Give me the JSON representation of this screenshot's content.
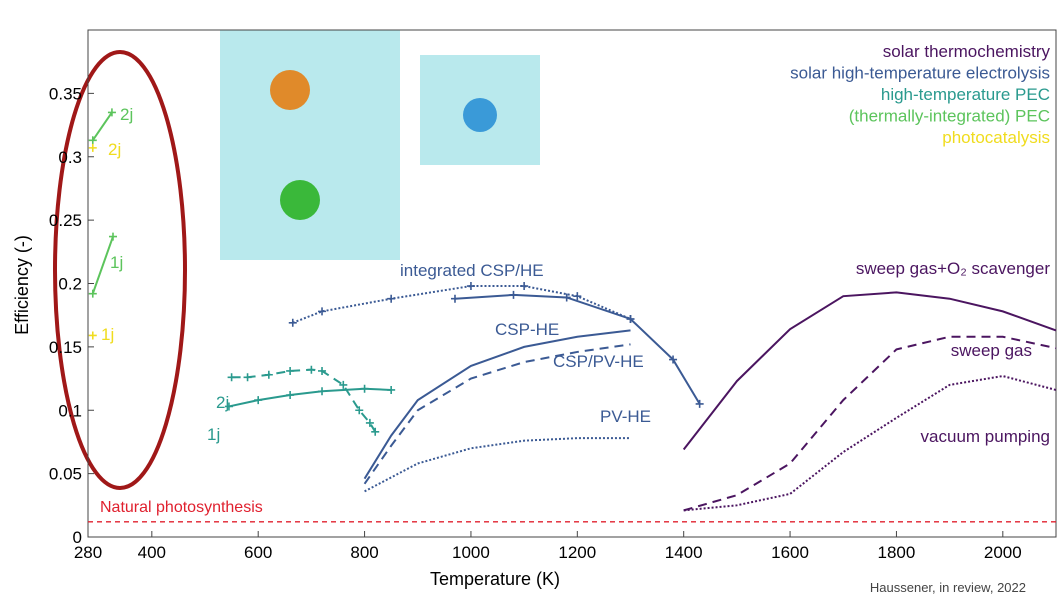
{
  "chart_data": {
    "type": "line",
    "x_label": "Temperature (K)",
    "y_label": "Efficiency (-)",
    "xlim": [
      280,
      2100
    ],
    "ylim": [
      0,
      0.4
    ],
    "xticks": [
      280,
      400,
      600,
      800,
      1000,
      1200,
      1400,
      1600,
      1800,
      2000
    ],
    "yticks": [
      0,
      0.05,
      0.1,
      0.15,
      0.2,
      0.25,
      0.3,
      0.35
    ],
    "legend": [
      {
        "name": "solar thermochemistry",
        "color": "#4b1560"
      },
      {
        "name": "solar high-temperature electrolysis",
        "color": "#3b5a94"
      },
      {
        "name": "high-temperature PEC",
        "color": "#2a9a8e"
      },
      {
        "name": "(thermally-integrated) PEC",
        "color": "#5cc45c"
      },
      {
        "name": "photocatalysis",
        "color": "#f0dc1e"
      }
    ],
    "series": [
      {
        "name": "2j",
        "color": "#5cc45c",
        "dash": "solid",
        "markers": true,
        "x": [
          289,
          325
        ],
        "values": [
          0.313,
          0.335
        ]
      },
      {
        "name": "2j",
        "color": "#f0dc1e",
        "dash": "solid",
        "markers": true,
        "x": [
          289
        ],
        "values": [
          0.307
        ]
      },
      {
        "name": "1j",
        "color": "#5cc45c",
        "dash": "solid",
        "markers": true,
        "x": [
          289,
          327
        ],
        "values": [
          0.192,
          0.237
        ]
      },
      {
        "name": "1j",
        "color": "#f0dc1e",
        "dash": "solid",
        "markers": true,
        "x": [
          289
        ],
        "values": [
          0.159
        ]
      },
      {
        "name": "2j",
        "color": "#2a9a8e",
        "dash": "dash",
        "markers": true,
        "x": [
          550,
          580,
          620,
          660,
          700,
          720,
          760,
          790,
          810,
          820
        ],
        "values": [
          0.126,
          0.126,
          0.128,
          0.131,
          0.132,
          0.131,
          0.12,
          0.1,
          0.09,
          0.083
        ]
      },
      {
        "name": "1j",
        "color": "#2a9a8e",
        "dash": "solid",
        "markers": true,
        "x": [
          545,
          600,
          660,
          720,
          800,
          850
        ],
        "values": [
          0.103,
          0.108,
          0.112,
          0.115,
          0.117,
          0.116
        ]
      },
      {
        "name": "integrated CSP/HE",
        "color": "#3b5a94",
        "dash": "dot",
        "markers": true,
        "x": [
          665,
          720,
          850,
          1000,
          1100,
          1200,
          1300
        ],
        "values": [
          0.169,
          0.178,
          0.188,
          0.198,
          0.198,
          0.19,
          0.172
        ]
      },
      {
        "color": "#3b5a94",
        "dash": "solid",
        "markers": true,
        "x": [
          970,
          1080,
          1180,
          1300,
          1380,
          1430
        ],
        "values": [
          0.188,
          0.191,
          0.189,
          0.172,
          0.14,
          0.105
        ]
      },
      {
        "name": "CSP-HE",
        "color": "#3b5a94",
        "dash": "solid",
        "markers": false,
        "x": [
          800,
          850,
          900,
          1000,
          1100,
          1200,
          1300
        ],
        "values": [
          0.046,
          0.08,
          0.108,
          0.135,
          0.15,
          0.158,
          0.163
        ]
      },
      {
        "name": "CSP/PV-HE",
        "color": "#3b5a94",
        "dash": "dash",
        "markers": false,
        "x": [
          800,
          850,
          900,
          1000,
          1100,
          1200,
          1300
        ],
        "values": [
          0.042,
          0.072,
          0.1,
          0.125,
          0.138,
          0.146,
          0.152
        ]
      },
      {
        "name": "PV-HE",
        "color": "#3b5a94",
        "dash": "dot",
        "markers": false,
        "x": [
          800,
          900,
          1000,
          1100,
          1200,
          1300
        ],
        "values": [
          0.036,
          0.058,
          0.07,
          0.076,
          0.078,
          0.078
        ]
      },
      {
        "name": "sweep gas+O₂ scavenger",
        "color": "#4b1560",
        "dash": "solid",
        "markers": false,
        "x": [
          1400,
          1500,
          1600,
          1700,
          1800,
          1900,
          2000,
          2100
        ],
        "values": [
          0.069,
          0.123,
          0.164,
          0.19,
          0.193,
          0.188,
          0.178,
          0.163
        ]
      },
      {
        "name": "sweep gas",
        "color": "#4b1560",
        "dash": "dash",
        "markers": false,
        "x": [
          1400,
          1500,
          1600,
          1700,
          1800,
          1900,
          2000,
          2100
        ],
        "values": [
          0.021,
          0.033,
          0.058,
          0.108,
          0.148,
          0.158,
          0.158,
          0.149
        ]
      },
      {
        "name": "vacuum pumping",
        "color": "#4b1560",
        "dash": "dot",
        "markers": false,
        "x": [
          1400,
          1500,
          1600,
          1700,
          1800,
          1900,
          2000,
          2100
        ],
        "values": [
          0.021,
          0.025,
          0.034,
          0.067,
          0.094,
          0.12,
          0.127,
          0.116
        ]
      }
    ],
    "reference": {
      "name": "Natural photosynthesis",
      "color": "#e0202e",
      "value": 0.012
    },
    "source": "Haussener, in review, 2022"
  }
}
